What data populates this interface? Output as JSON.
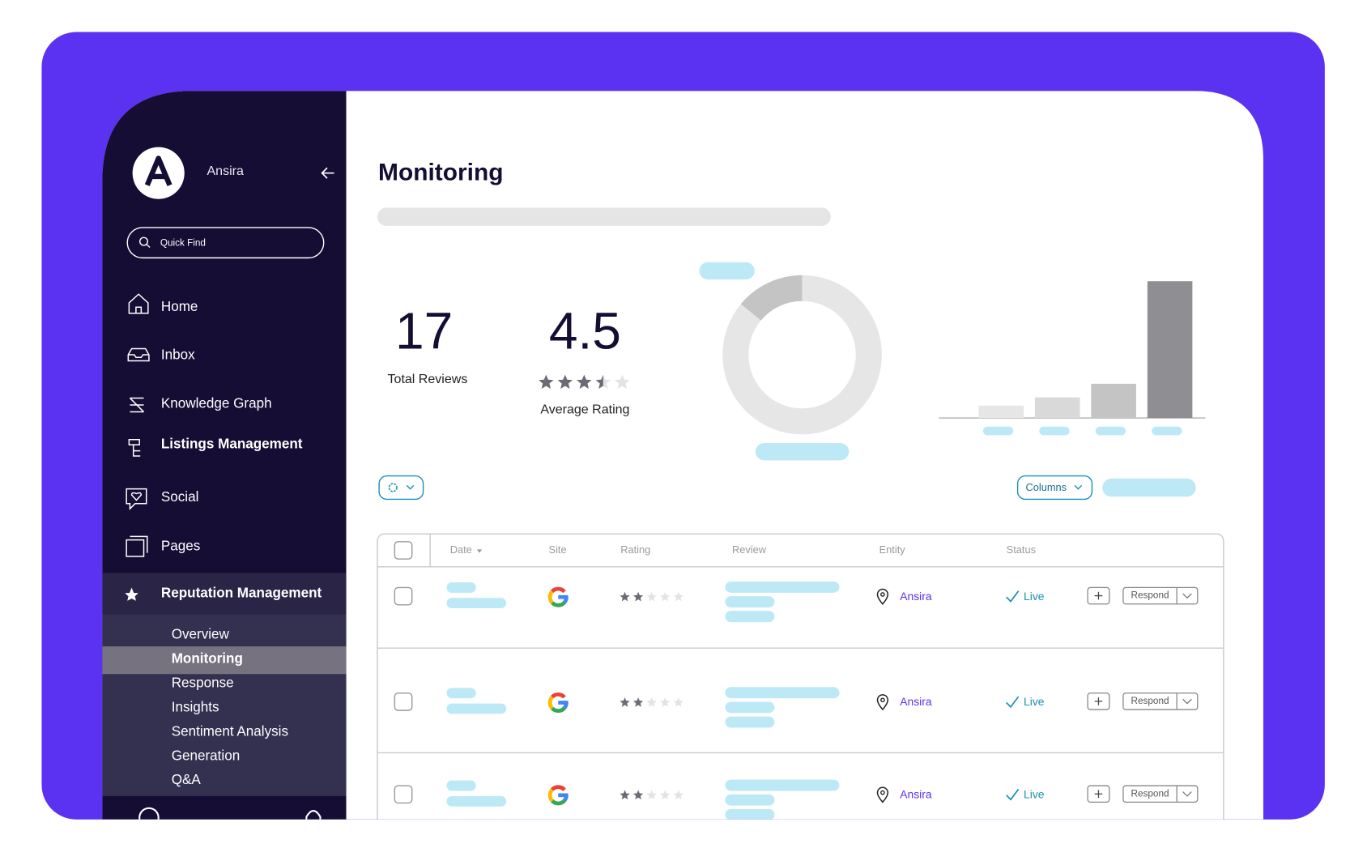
{
  "sidebar": {
    "brand": "Ansira",
    "search": "Quick Find",
    "nav": [
      "Home",
      "Inbox",
      "Knowledge Graph",
      "Listings Management",
      "Social",
      "Pages"
    ],
    "section": "Reputation Management",
    "subnav": [
      "Overview",
      "Monitoring",
      "Response",
      "Insights",
      "Sentiment Analysis",
      "Generation",
      "Q&A"
    ],
    "active": 1
  },
  "header": {
    "title": "Monitoring"
  },
  "stats": [
    {
      "value": 17,
      "label": "Total Reviews"
    },
    {
      "value": 4.5,
      "label": "Average Rating",
      "stars": 3.5
    }
  ],
  "donut": {
    "values": [
      14,
      86
    ],
    "colors": [
      "#c4c4c4",
      "#e6e6e6"
    ]
  },
  "bars": {
    "values": [
      9,
      15,
      25,
      100
    ],
    "ylim": [
      0,
      100
    ],
    "colors": [
      "#e6e6e6",
      "#d9d9d9",
      "#c4c4c4",
      "#8e8e93"
    ]
  },
  "toolbar": {
    "columns_button": "Columns"
  },
  "table": {
    "columns": [
      "Date",
      "Site",
      "Rating",
      "Review",
      "Entity",
      "Status"
    ],
    "rows": [
      {
        "rating": 2,
        "entity": "Ansira",
        "status": "Live",
        "action": "Respond"
      },
      {
        "rating": 2,
        "entity": "Ansira",
        "status": "Live",
        "action": "Respond"
      },
      {
        "rating": 2,
        "entity": "Ansira",
        "status": "Live",
        "action": "Respond"
      }
    ]
  }
}
